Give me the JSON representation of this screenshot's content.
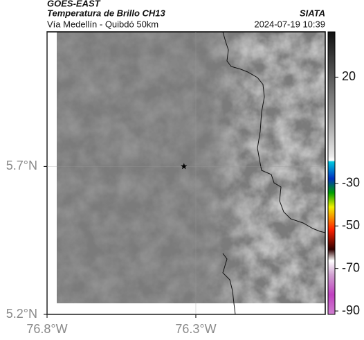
{
  "chart_data": {
    "type": "map",
    "satellite": "GOES-EAST",
    "title": "Temperatura de Brillo CH13",
    "source": "SIATA",
    "subtitle": "Vía Medellín - Quibdó 50km",
    "timestamp": "2024-07-19 10:39",
    "xlim": [
      -76.8,
      -75.865
    ],
    "ylim": [
      5.2,
      6.155
    ],
    "xticks": [
      {
        "value": -76.8,
        "label": "76.8°W"
      },
      {
        "value": -76.3,
        "label": "76.3°W"
      }
    ],
    "yticks": [
      {
        "value": 5.2,
        "label": "5.2°N"
      },
      {
        "value": 5.7,
        "label": "5.7°N"
      }
    ],
    "grid": true,
    "marker": {
      "x": -76.34,
      "y": 5.7
    },
    "clim": [
      -91.6,
      41.3
    ],
    "cticks": [
      20,
      -30,
      -50,
      -70,
      -90
    ]
  }
}
